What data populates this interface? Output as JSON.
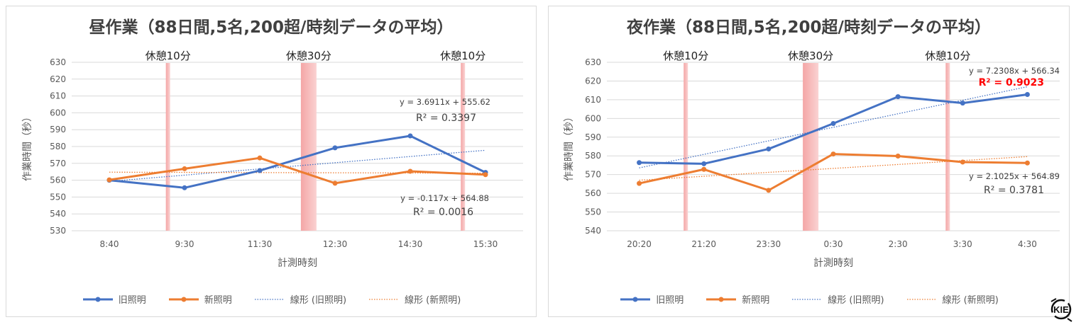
{
  "chart_data": [
    {
      "type": "line",
      "title": "昼作業（88日間,5名,200超/時刻データの平均）",
      "xlabel": "計測時刻",
      "ylabel": "作業時間（秒）",
      "ylim": [
        530,
        630
      ],
      "yticks": [
        530,
        540,
        550,
        560,
        570,
        580,
        590,
        600,
        610,
        620,
        630
      ],
      "categories": [
        "8:40",
        "9:30",
        "11:30",
        "12:30",
        "14:30",
        "15:30"
      ],
      "series": [
        {
          "name": "旧照明",
          "color": "#4472C4",
          "values": [
            560,
            555.5,
            565.7,
            579.2,
            586.3,
            564.6
          ]
        },
        {
          "name": "新照明",
          "color": "#ED7D31",
          "values": [
            560.2,
            566.8,
            573.2,
            558.2,
            565.3,
            563.3
          ]
        }
      ],
      "trendlines": [
        {
          "name": "線形 (旧照明)",
          "color": "#4472C4",
          "slope": 3.6911,
          "intercept": 555.62,
          "equation": "y = 3.6911x  + 555.62",
          "r2": "R² = 0.3397"
        },
        {
          "name": "線形 (新照明)",
          "color": "#ED7D31",
          "slope": -0.117,
          "intercept": 564.88,
          "equation": "y = -0.117x  + 564.88",
          "r2": "R² = 0.0016"
        }
      ],
      "breaks": [
        {
          "label": "休憩10分",
          "minutes": 10,
          "position": 1.28
        },
        {
          "label": "休憩30分",
          "minutes": 30,
          "position": 3.15
        },
        {
          "label": "休憩10分",
          "minutes": 10,
          "position": 5.2
        }
      ]
    },
    {
      "type": "line",
      "title": "夜作業（88日間,5名,200超/時刻データの平均）",
      "xlabel": "計測時刻",
      "ylabel": "作業時間（秒）",
      "ylim": [
        540,
        630
      ],
      "yticks": [
        540,
        550,
        560,
        570,
        580,
        590,
        600,
        610,
        620,
        630
      ],
      "categories": [
        "20:20",
        "21:20",
        "23:30",
        "0:30",
        "2:30",
        "3:30",
        "4:30"
      ],
      "series": [
        {
          "name": "旧照明",
          "color": "#4472C4",
          "values": [
            576.4,
            575.8,
            583.7,
            597.3,
            611.6,
            608.2,
            612.8
          ]
        },
        {
          "name": "新照明",
          "color": "#ED7D31",
          "values": [
            565.3,
            572.8,
            561.6,
            581,
            579.9,
            576.7,
            576.2
          ]
        }
      ],
      "trendlines": [
        {
          "name": "線形 (旧照明)",
          "color": "#4472C4",
          "slope": 7.2308,
          "intercept": 566.34,
          "equation": "y = 7.2308x  + 566.34",
          "r2": "R² = 0.9023",
          "r2_highlight": "#ff0000"
        },
        {
          "name": "線形 (新照明)",
          "color": "#ED7D31",
          "slope": 2.1025,
          "intercept": 564.89,
          "equation": "y = 2.1025x  + 564.89",
          "r2": "R² = 0.3781"
        }
      ],
      "breaks": [
        {
          "label": "休憩10分",
          "minutes": 10,
          "position": 1.22
        },
        {
          "label": "休憩30分",
          "minutes": 30,
          "position": 3.15
        },
        {
          "label": "休憩10分",
          "minutes": 10,
          "position": 5.27
        }
      ]
    }
  ],
  "logo": {
    "text": "KIE"
  },
  "colors": {
    "break_fill": "#F4A6A6",
    "break_edge": "#FAD2D2",
    "grid": "#d9d9d9",
    "axis_text": "#595959"
  }
}
